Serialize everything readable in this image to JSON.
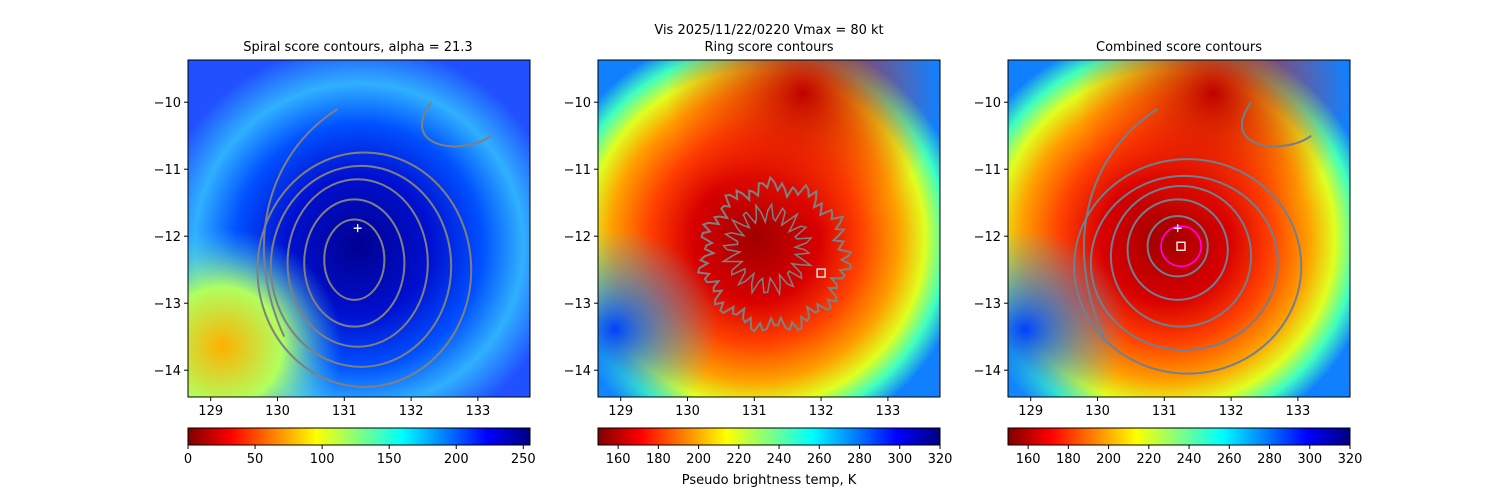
{
  "suptitle": "Vis  2025/11/22/0220    Vmax = 80 kt",
  "colorbar_label": "Pseudo brightness temp, K",
  "colormap": "jet_r",
  "chart_data": [
    {
      "type": "heatmap",
      "title": "Spiral score contours, alpha = 21.3",
      "xlim": [
        128.66,
        133.78
      ],
      "ylim": [
        -14.4,
        -9.37
      ],
      "xticks": [
        "129",
        "130",
        "131",
        "132",
        "133"
      ],
      "xtick_values": [
        129,
        130,
        131,
        132,
        133
      ],
      "yticks": [
        "−10",
        "−11",
        "−12",
        "−13",
        "−14"
      ],
      "ytick_values": [
        -10,
        -11,
        -12,
        -13,
        -14
      ],
      "colorbar": {
        "range": [
          0,
          255
        ],
        "ticks": [
          "0",
          "50",
          "100",
          "150",
          "200",
          "250"
        ],
        "tick_values": [
          0,
          50,
          100,
          150,
          200,
          250
        ]
      },
      "center_marker": {
        "type": "plus",
        "lon": 131.2,
        "lat": -11.88,
        "color": "#ffffff"
      },
      "contour_color": "#808080",
      "contours": [
        {
          "lon": 131.15,
          "lat": -12.35,
          "rx": 0.45,
          "ry": 0.6
        },
        {
          "lon": 131.15,
          "lat": -12.4,
          "rx": 0.75,
          "ry": 0.95
        },
        {
          "lon": 131.2,
          "lat": -12.4,
          "rx": 1.05,
          "ry": 1.25
        },
        {
          "lon": 131.25,
          "lat": -12.45,
          "rx": 1.35,
          "ry": 1.5
        },
        {
          "lon": 131.3,
          "lat": -12.5,
          "rx": 1.6,
          "ry": 1.75
        }
      ]
    },
    {
      "type": "heatmap",
      "title": "Ring score contours",
      "xlim": [
        128.66,
        133.78
      ],
      "ylim": [
        -14.4,
        -9.37
      ],
      "xticks": [
        "129",
        "130",
        "131",
        "132",
        "133"
      ],
      "xtick_values": [
        129,
        130,
        131,
        132,
        133
      ],
      "yticks": [
        "−10",
        "−11",
        "−12",
        "−13",
        "−14"
      ],
      "ytick_values": [
        -10,
        -11,
        -12,
        -13,
        -14
      ],
      "colorbar": {
        "range": [
          150,
          320
        ],
        "ticks": [
          "160",
          "180",
          "200",
          "220",
          "240",
          "260",
          "280",
          "300",
          "320"
        ],
        "tick_values": [
          160,
          180,
          200,
          220,
          240,
          260,
          280,
          300,
          320
        ]
      },
      "center_marker": {
        "type": "square",
        "lon": 132.0,
        "lat": -12.55,
        "color": "#ffffff"
      },
      "contour_color": "#808080",
      "ring_contour": {
        "lon": 131.3,
        "lat": -12.3,
        "r": 1.05
      }
    },
    {
      "type": "heatmap",
      "title": "Combined score contours",
      "xlim": [
        128.66,
        133.78
      ],
      "ylim": [
        -14.4,
        -9.37
      ],
      "xticks": [
        "129",
        "130",
        "131",
        "132",
        "133"
      ],
      "xtick_values": [
        129,
        130,
        131,
        132,
        133
      ],
      "yticks": [
        "−10",
        "−11",
        "−12",
        "−13",
        "−14"
      ],
      "ytick_values": [
        -10,
        -11,
        -12,
        -13,
        -14
      ],
      "colorbar": {
        "range": [
          150,
          320
        ],
        "ticks": [
          "160",
          "180",
          "200",
          "220",
          "240",
          "260",
          "280",
          "300",
          "320"
        ],
        "tick_values": [
          160,
          180,
          200,
          220,
          240,
          260,
          280,
          300,
          320
        ]
      },
      "center_marker": {
        "type": "plus",
        "lon": 131.2,
        "lat": -11.88,
        "color": "#ffffff"
      },
      "square_marker": {
        "lon": 131.25,
        "lat": -12.15,
        "color": "#ffffff"
      },
      "circle_marker": {
        "lon": 131.25,
        "lat": -12.15,
        "r": 0.3,
        "color": "#ff00ff"
      },
      "contour_color": "#708090",
      "contours": [
        {
          "lon": 131.2,
          "lat": -12.15,
          "rx": 0.45,
          "ry": 0.45
        },
        {
          "lon": 131.2,
          "lat": -12.2,
          "rx": 0.75,
          "ry": 0.75
        },
        {
          "lon": 131.25,
          "lat": -12.3,
          "rx": 1.05,
          "ry": 1.05
        },
        {
          "lon": 131.3,
          "lat": -12.4,
          "rx": 1.4,
          "ry": 1.3
        },
        {
          "lon": 131.35,
          "lat": -12.45,
          "rx": 1.7,
          "ry": 1.6
        }
      ]
    }
  ]
}
